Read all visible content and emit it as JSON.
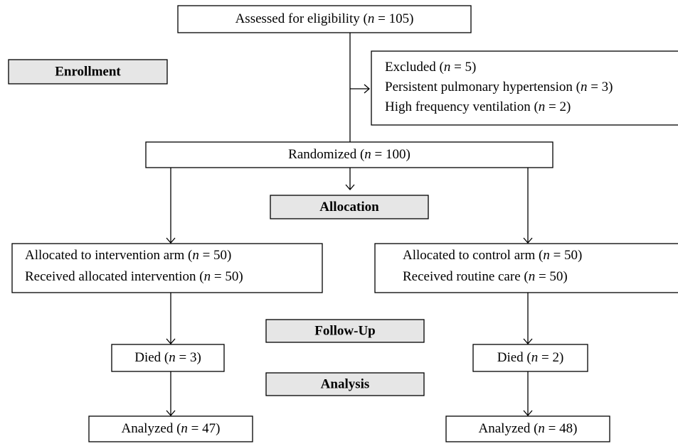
{
  "stages": {
    "enrollment": "Enrollment",
    "allocation": "Allocation",
    "follow_up": "Follow-Up",
    "analysis": "Analysis"
  },
  "boxes": {
    "assessed": {
      "lines": [
        [
          "Assessed for eligibility (",
          "n",
          " = 105)"
        ]
      ]
    },
    "excluded": {
      "lines": [
        [
          "Excluded (",
          "n",
          " = 5)"
        ],
        [
          "Persistent pulmonary hypertension (",
          "n",
          " = 3)"
        ],
        [
          "High frequency ventilation (",
          "n",
          " = 2)"
        ]
      ]
    },
    "randomized": {
      "lines": [
        [
          "Randomized (",
          "n",
          " = 100)"
        ]
      ]
    },
    "intervention": {
      "lines": [
        [
          "Allocated to intervention arm (",
          "n",
          " = 50)"
        ],
        [
          "Received allocated intervention (",
          "n",
          " = 50)"
        ]
      ]
    },
    "control": {
      "lines": [
        [
          "Allocated to control arm (",
          "n",
          " = 50)"
        ],
        [
          "Received routine care (",
          "n",
          " = 50)"
        ]
      ]
    },
    "died_intervention": {
      "lines": [
        [
          "Died (",
          "n",
          " = 3)"
        ]
      ]
    },
    "died_control": {
      "lines": [
        [
          "Died (",
          "n",
          " = 2)"
        ]
      ]
    },
    "analyzed_intervention": {
      "lines": [
        [
          "Analyzed (",
          "n",
          " = 47)"
        ]
      ]
    },
    "analyzed_control": {
      "lines": [
        [
          "Analyzed (",
          "n",
          " = 48)"
        ]
      ]
    }
  }
}
